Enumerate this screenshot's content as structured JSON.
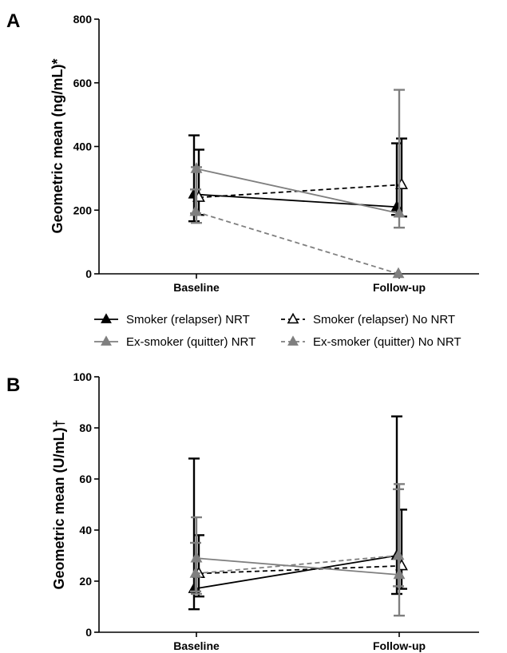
{
  "figure": {
    "panel_a_label": "A",
    "panel_b_label": "B"
  },
  "legend": {
    "items": [
      {
        "label": "Smoker (relapser) NRT",
        "color": "#000000",
        "dashed": false
      },
      {
        "label": "Smoker (relapser) No NRT",
        "color": "#000000",
        "dashed": true
      },
      {
        "label": "Ex-smoker (quitter) NRT",
        "color": "#7f7f7f",
        "dashed": false
      },
      {
        "label": "Ex-smoker (quitter) No NRT",
        "color": "#7f7f7f",
        "dashed": true
      }
    ]
  },
  "chart_data": [
    {
      "panel": "A",
      "type": "line",
      "ylabel": "Geometric mean (ng/mL)*",
      "xlabel": "",
      "categories": [
        "Baseline",
        "Follow-up"
      ],
      "ylim": [
        0,
        800
      ],
      "yticks": [
        0,
        200,
        400,
        600,
        800
      ],
      "legend_position": "bottom",
      "grid": false,
      "series": [
        {
          "name": "Smoker (relapser) NRT",
          "color": "#000000",
          "dashed": false,
          "marker": "filled-triangle",
          "values": [
            250,
            210
          ],
          "err_low": [
            165,
            185
          ],
          "err_high": [
            435,
            410
          ]
        },
        {
          "name": "Smoker (relapser) No NRT",
          "color": "#000000",
          "dashed": true,
          "marker": "open-triangle",
          "values": [
            240,
            280
          ],
          "err_low": [
            185,
            180
          ],
          "err_high": [
            390,
            425
          ]
        },
        {
          "name": "Ex-smoker (quitter) NRT",
          "color": "#7f7f7f",
          "dashed": false,
          "marker": "filled-triangle",
          "values": [
            330,
            190
          ],
          "err_low": [
            160,
            145
          ],
          "err_high": [
            335,
            578
          ]
        },
        {
          "name": "Ex-smoker (quitter) No NRT",
          "color": "#7f7f7f",
          "dashed": true,
          "marker": "filled-triangle",
          "values": [
            195,
            0
          ],
          "err_low": [
            190,
            0
          ],
          "err_high": [
            265,
            0
          ]
        }
      ]
    },
    {
      "panel": "B",
      "type": "line",
      "ylabel": "Geometric mean (U/mL)†",
      "xlabel": "",
      "categories": [
        "Baseline",
        "Follow-up"
      ],
      "ylim": [
        0,
        100
      ],
      "yticks": [
        0,
        20,
        40,
        60,
        80,
        100
      ],
      "grid": false,
      "series": [
        {
          "name": "Smoker (relapser) NRT",
          "color": "#000000",
          "dashed": false,
          "marker": "filled-triangle",
          "values": [
            17,
            30
          ],
          "err_low": [
            9,
            15
          ],
          "err_high": [
            68,
            84.5
          ]
        },
        {
          "name": "Smoker (relapser) No NRT",
          "color": "#000000",
          "dashed": true,
          "marker": "open-triangle",
          "values": [
            23,
            26
          ],
          "err_low": [
            14,
            17
          ],
          "err_high": [
            38,
            48
          ]
        },
        {
          "name": "Ex-smoker (quitter) NRT",
          "color": "#7f7f7f",
          "dashed": false,
          "marker": "filled-triangle",
          "values": [
            29,
            22.5
          ],
          "err_low": [
            15,
            6.5
          ],
          "err_high": [
            45,
            58
          ]
        },
        {
          "name": "Ex-smoker (quitter) No NRT",
          "color": "#7f7f7f",
          "dashed": true,
          "marker": "filled-triangle",
          "values": [
            23,
            30
          ],
          "err_low": [
            16,
            18
          ],
          "err_high": [
            35,
            56
          ]
        }
      ]
    }
  ]
}
